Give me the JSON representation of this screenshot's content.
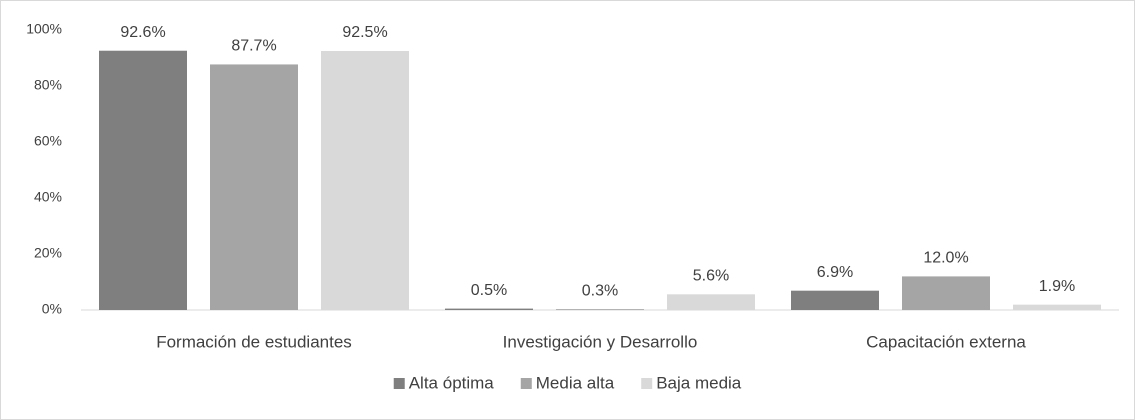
{
  "chart_data": {
    "type": "bar",
    "categories": [
      "Formación de estudiantes",
      "Investigación y Desarrollo",
      "Capacitación externa"
    ],
    "series": [
      {
        "name": "Alta óptima",
        "color": "#7f7f7f",
        "values": [
          92.6,
          0.5,
          6.9
        ],
        "value_labels": [
          "92.6%",
          "0.5%",
          "6.9%"
        ]
      },
      {
        "name": "Media alta",
        "color": "#a5a5a5",
        "values": [
          87.7,
          0.3,
          12.0
        ],
        "value_labels": [
          "87.7%",
          "0.3%",
          "12.0%"
        ]
      },
      {
        "name": "Baja media",
        "color": "#d9d9d9",
        "values": [
          92.5,
          5.6,
          1.9
        ],
        "value_labels": [
          "92.5%",
          "5.6%",
          "1.9%"
        ]
      }
    ],
    "ylim": [
      0,
      100
    ],
    "yticks": [
      {
        "value": 0,
        "label": "0%"
      },
      {
        "value": 20,
        "label": "20%"
      },
      {
        "value": 40,
        "label": "40%"
      },
      {
        "value": 60,
        "label": "60%"
      },
      {
        "value": 80,
        "label": "80%"
      },
      {
        "value": 100,
        "label": "100%"
      }
    ],
    "legend": "bottom",
    "grid": false
  }
}
